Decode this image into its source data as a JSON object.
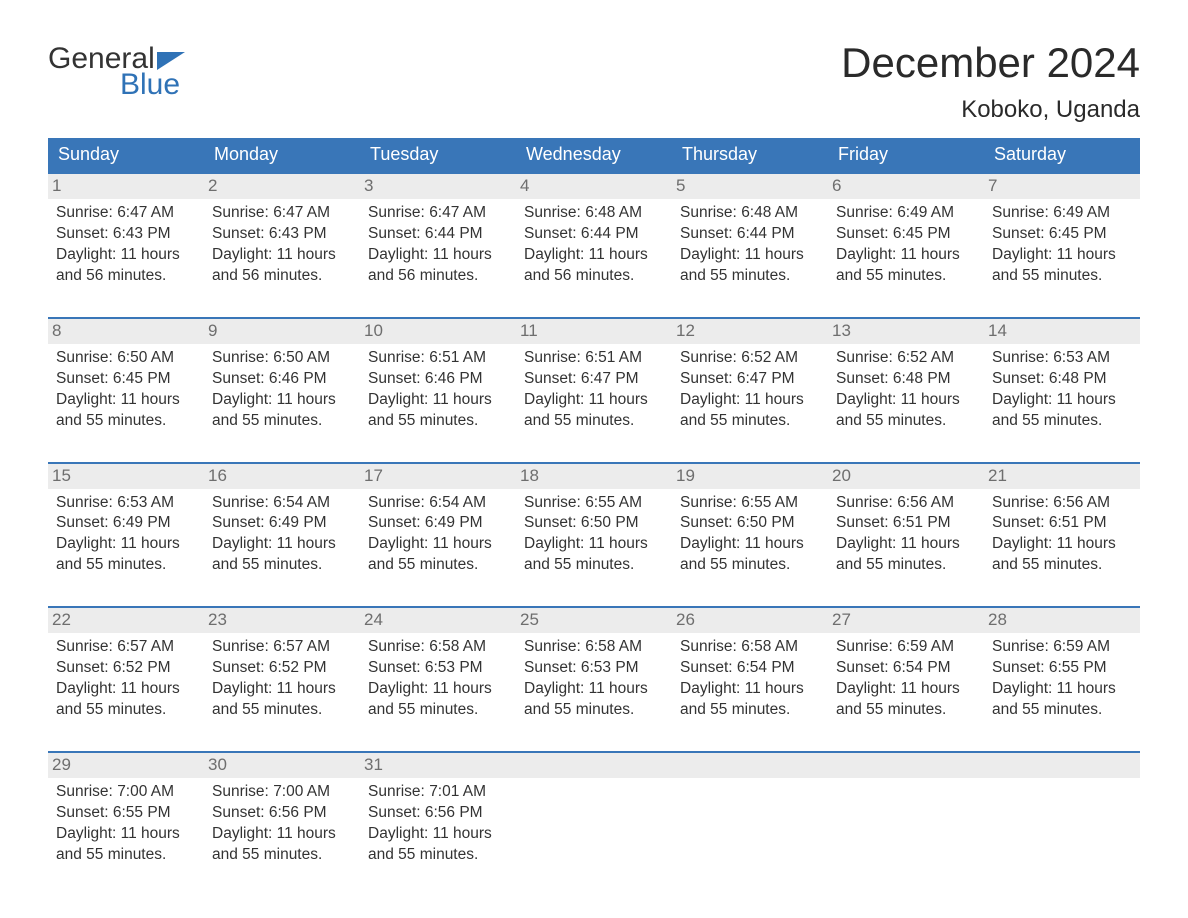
{
  "brand": {
    "line1": "General",
    "line2": "Blue"
  },
  "title": "December 2024",
  "location": "Koboko, Uganda",
  "colors": {
    "header_bg": "#3976b8",
    "header_text": "#ffffff",
    "daynum_bg": "#ececec",
    "daynum_text": "#6e6e6e",
    "body_text": "#333333",
    "accent": "#2f72b6",
    "page_bg": "#ffffff"
  },
  "typography": {
    "title_fontsize": 42,
    "location_fontsize": 24,
    "dow_fontsize": 18,
    "daynum_fontsize": 17,
    "detail_fontsize": 15.5
  },
  "days_of_week": [
    "Sunday",
    "Monday",
    "Tuesday",
    "Wednesday",
    "Thursday",
    "Friday",
    "Saturday"
  ],
  "labels": {
    "sunrise": "Sunrise:",
    "sunset": "Sunset:",
    "daylight": "Daylight:"
  },
  "weeks": [
    [
      {
        "n": "1",
        "sunrise": "6:47 AM",
        "sunset": "6:43 PM",
        "daylight": "11 hours and 56 minutes."
      },
      {
        "n": "2",
        "sunrise": "6:47 AM",
        "sunset": "6:43 PM",
        "daylight": "11 hours and 56 minutes."
      },
      {
        "n": "3",
        "sunrise": "6:47 AM",
        "sunset": "6:44 PM",
        "daylight": "11 hours and 56 minutes."
      },
      {
        "n": "4",
        "sunrise": "6:48 AM",
        "sunset": "6:44 PM",
        "daylight": "11 hours and 56 minutes."
      },
      {
        "n": "5",
        "sunrise": "6:48 AM",
        "sunset": "6:44 PM",
        "daylight": "11 hours and 55 minutes."
      },
      {
        "n": "6",
        "sunrise": "6:49 AM",
        "sunset": "6:45 PM",
        "daylight": "11 hours and 55 minutes."
      },
      {
        "n": "7",
        "sunrise": "6:49 AM",
        "sunset": "6:45 PM",
        "daylight": "11 hours and 55 minutes."
      }
    ],
    [
      {
        "n": "8",
        "sunrise": "6:50 AM",
        "sunset": "6:45 PM",
        "daylight": "11 hours and 55 minutes."
      },
      {
        "n": "9",
        "sunrise": "6:50 AM",
        "sunset": "6:46 PM",
        "daylight": "11 hours and 55 minutes."
      },
      {
        "n": "10",
        "sunrise": "6:51 AM",
        "sunset": "6:46 PM",
        "daylight": "11 hours and 55 minutes."
      },
      {
        "n": "11",
        "sunrise": "6:51 AM",
        "sunset": "6:47 PM",
        "daylight": "11 hours and 55 minutes."
      },
      {
        "n": "12",
        "sunrise": "6:52 AM",
        "sunset": "6:47 PM",
        "daylight": "11 hours and 55 minutes."
      },
      {
        "n": "13",
        "sunrise": "6:52 AM",
        "sunset": "6:48 PM",
        "daylight": "11 hours and 55 minutes."
      },
      {
        "n": "14",
        "sunrise": "6:53 AM",
        "sunset": "6:48 PM",
        "daylight": "11 hours and 55 minutes."
      }
    ],
    [
      {
        "n": "15",
        "sunrise": "6:53 AM",
        "sunset": "6:49 PM",
        "daylight": "11 hours and 55 minutes."
      },
      {
        "n": "16",
        "sunrise": "6:54 AM",
        "sunset": "6:49 PM",
        "daylight": "11 hours and 55 minutes."
      },
      {
        "n": "17",
        "sunrise": "6:54 AM",
        "sunset": "6:49 PM",
        "daylight": "11 hours and 55 minutes."
      },
      {
        "n": "18",
        "sunrise": "6:55 AM",
        "sunset": "6:50 PM",
        "daylight": "11 hours and 55 minutes."
      },
      {
        "n": "19",
        "sunrise": "6:55 AM",
        "sunset": "6:50 PM",
        "daylight": "11 hours and 55 minutes."
      },
      {
        "n": "20",
        "sunrise": "6:56 AM",
        "sunset": "6:51 PM",
        "daylight": "11 hours and 55 minutes."
      },
      {
        "n": "21",
        "sunrise": "6:56 AM",
        "sunset": "6:51 PM",
        "daylight": "11 hours and 55 minutes."
      }
    ],
    [
      {
        "n": "22",
        "sunrise": "6:57 AM",
        "sunset": "6:52 PM",
        "daylight": "11 hours and 55 minutes."
      },
      {
        "n": "23",
        "sunrise": "6:57 AM",
        "sunset": "6:52 PM",
        "daylight": "11 hours and 55 minutes."
      },
      {
        "n": "24",
        "sunrise": "6:58 AM",
        "sunset": "6:53 PM",
        "daylight": "11 hours and 55 minutes."
      },
      {
        "n": "25",
        "sunrise": "6:58 AM",
        "sunset": "6:53 PM",
        "daylight": "11 hours and 55 minutes."
      },
      {
        "n": "26",
        "sunrise": "6:58 AM",
        "sunset": "6:54 PM",
        "daylight": "11 hours and 55 minutes."
      },
      {
        "n": "27",
        "sunrise": "6:59 AM",
        "sunset": "6:54 PM",
        "daylight": "11 hours and 55 minutes."
      },
      {
        "n": "28",
        "sunrise": "6:59 AM",
        "sunset": "6:55 PM",
        "daylight": "11 hours and 55 minutes."
      }
    ],
    [
      {
        "n": "29",
        "sunrise": "7:00 AM",
        "sunset": "6:55 PM",
        "daylight": "11 hours and 55 minutes."
      },
      {
        "n": "30",
        "sunrise": "7:00 AM",
        "sunset": "6:56 PM",
        "daylight": "11 hours and 55 minutes."
      },
      {
        "n": "31",
        "sunrise": "7:01 AM",
        "sunset": "6:56 PM",
        "daylight": "11 hours and 55 minutes."
      },
      {
        "empty": true
      },
      {
        "empty": true
      },
      {
        "empty": true
      },
      {
        "empty": true
      }
    ]
  ]
}
